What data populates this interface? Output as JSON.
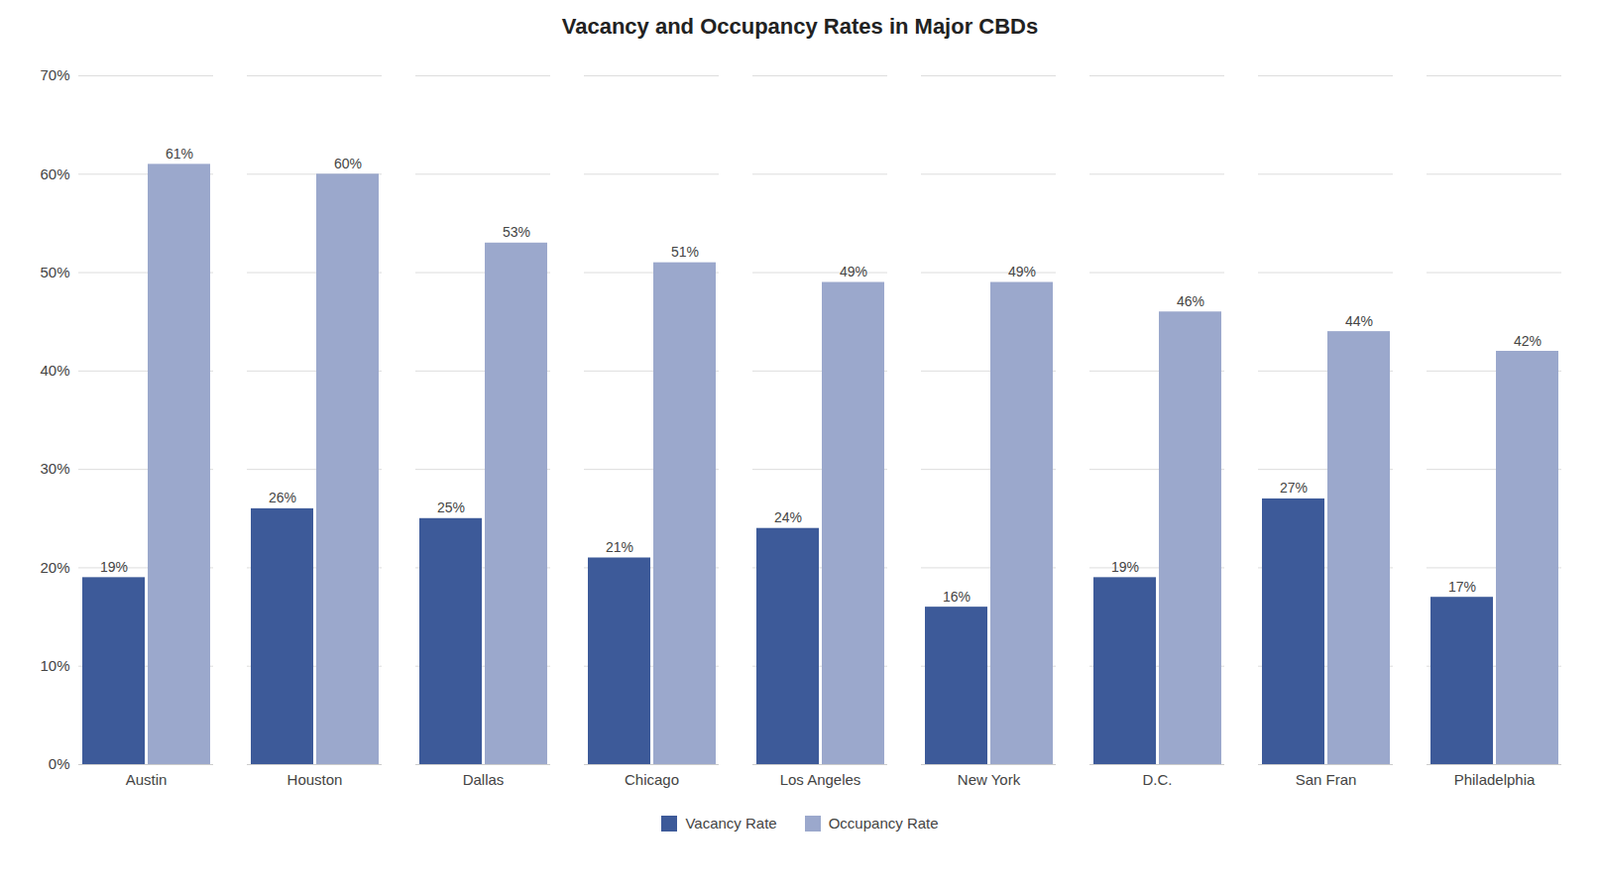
{
  "chart_data": {
    "type": "bar",
    "title": "Vacancy and Occupancy Rates in Major CBDs",
    "categories": [
      "Austin",
      "Houston",
      "Dallas",
      "Chicago",
      "Los Angeles",
      "New York",
      "D.C.",
      "San Fran",
      "Philadelphia"
    ],
    "series": [
      {
        "name": "Vacancy Rate",
        "color": "#3D5A99",
        "values": [
          0.19,
          0.26,
          0.25,
          0.21,
          0.24,
          0.16,
          0.19,
          0.27,
          0.17
        ],
        "value_labels": [
          "19%",
          "26%",
          "25%",
          "21%",
          "24%",
          "16%",
          "19%",
          "27%",
          "17%"
        ]
      },
      {
        "name": "Occupancy Rate",
        "color": "#9BA8CC",
        "values": [
          0.61,
          0.6,
          0.53,
          0.51,
          0.49,
          0.49,
          0.46,
          0.44,
          0.42
        ],
        "value_labels": [
          "61%",
          "60%",
          "53%",
          "51%",
          "49%",
          "49%",
          "46%",
          "44%",
          "42%"
        ]
      }
    ],
    "ylim": [
      0,
      0.7
    ],
    "yticks": [
      {
        "value": 0.0,
        "label": "0%"
      },
      {
        "value": 0.1,
        "label": "10%"
      },
      {
        "value": 0.2,
        "label": "20%"
      },
      {
        "value": 0.3,
        "label": "30%"
      },
      {
        "value": 0.4,
        "label": "40%"
      },
      {
        "value": 0.5,
        "label": "50%"
      },
      {
        "value": 0.6,
        "label": "60%"
      },
      {
        "value": 0.7,
        "label": "70%"
      }
    ],
    "grid": true,
    "legend": "bottom",
    "data_labels": true
  }
}
